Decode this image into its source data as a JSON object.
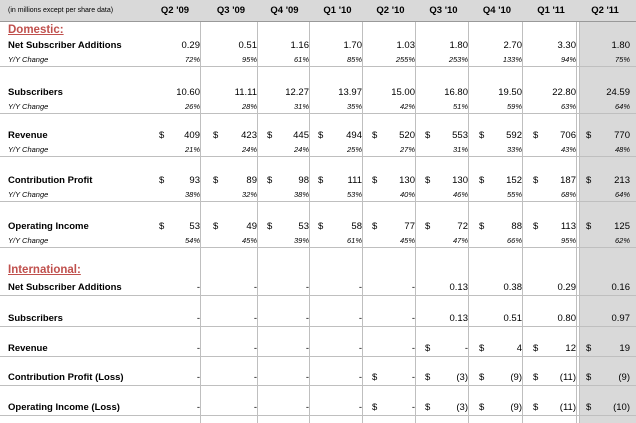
{
  "header": {
    "units": "(in millions except per share data)",
    "quarters": [
      "Q2 '09",
      "Q3 '09",
      "Q4 '09",
      "Q1 '10",
      "Q2 '10",
      "Q3 '10",
      "Q4 '10",
      "Q1 '11",
      "Q2 '11"
    ]
  },
  "domestic": {
    "title": "Domestic:",
    "net_adds": {
      "label": "Net Subscriber Additions",
      "values": [
        "0.29",
        "0.51",
        "1.16",
        "1.70",
        "1.03",
        "1.80",
        "2.70",
        "3.30",
        "1.80"
      ]
    },
    "net_adds_yoy": {
      "label": "Y/Y Change",
      "values": [
        "72%",
        "95%",
        "61%",
        "85%",
        "255%",
        "253%",
        "133%",
        "94%",
        "75%"
      ]
    },
    "subscribers": {
      "label": "Subscribers",
      "values": [
        "10.60",
        "11.11",
        "12.27",
        "13.97",
        "15.00",
        "16.80",
        "19.50",
        "22.80",
        "24.59"
      ]
    },
    "subscribers_yoy": {
      "label": "Y/Y Change",
      "values": [
        "26%",
        "28%",
        "31%",
        "35%",
        "42%",
        "51%",
        "59%",
        "63%",
        "64%"
      ]
    },
    "revenue": {
      "label": "Revenue",
      "values": [
        "409",
        "423",
        "445",
        "494",
        "520",
        "553",
        "592",
        "706",
        "770"
      ]
    },
    "revenue_yoy": {
      "label": "Y/Y Change",
      "values": [
        "21%",
        "24%",
        "24%",
        "25%",
        "27%",
        "31%",
        "33%",
        "43%",
        "48%"
      ]
    },
    "contribution": {
      "label": "Contribution Profit",
      "values": [
        "93",
        "89",
        "98",
        "111",
        "130",
        "130",
        "152",
        "187",
        "213"
      ]
    },
    "contribution_yoy": {
      "label": "Y/Y Change",
      "values": [
        "38%",
        "32%",
        "38%",
        "53%",
        "40%",
        "46%",
        "55%",
        "68%",
        "64%"
      ]
    },
    "opincome": {
      "label": "Operating Income",
      "values": [
        "53",
        "49",
        "53",
        "58",
        "77",
        "72",
        "88",
        "113",
        "125"
      ]
    },
    "opincome_yoy": {
      "label": "Y/Y Change",
      "values": [
        "54%",
        "45%",
        "39%",
        "61%",
        "45%",
        "47%",
        "66%",
        "95%",
        "62%"
      ]
    }
  },
  "international": {
    "title": "International:",
    "net_adds": {
      "label": "Net Subscriber Additions",
      "values": [
        "-",
        "-",
        "-",
        "-",
        "-",
        "0.13",
        "0.38",
        "0.29",
        "0.16"
      ]
    },
    "subscribers": {
      "label": "Subscribers",
      "values": [
        "-",
        "-",
        "-",
        "-",
        "-",
        "0.13",
        "0.51",
        "0.80",
        "0.97"
      ]
    },
    "revenue": {
      "label": "Revenue",
      "values": [
        "-",
        "-",
        "-",
        "-",
        "-",
        "-",
        "4",
        "12",
        "19"
      ]
    },
    "contribution": {
      "label": "Contribution Profit (Loss)",
      "values": [
        "-",
        "-",
        "-",
        "-",
        "-",
        "(3)",
        "(9)",
        "(11)",
        "(9)"
      ]
    },
    "opincome": {
      "label": "Operating Income (Loss)",
      "values": [
        "-",
        "-",
        "-",
        "-",
        "-",
        "(3)",
        "(9)",
        "(11)",
        "(10)"
      ]
    }
  },
  "currency_symbol": "$"
}
